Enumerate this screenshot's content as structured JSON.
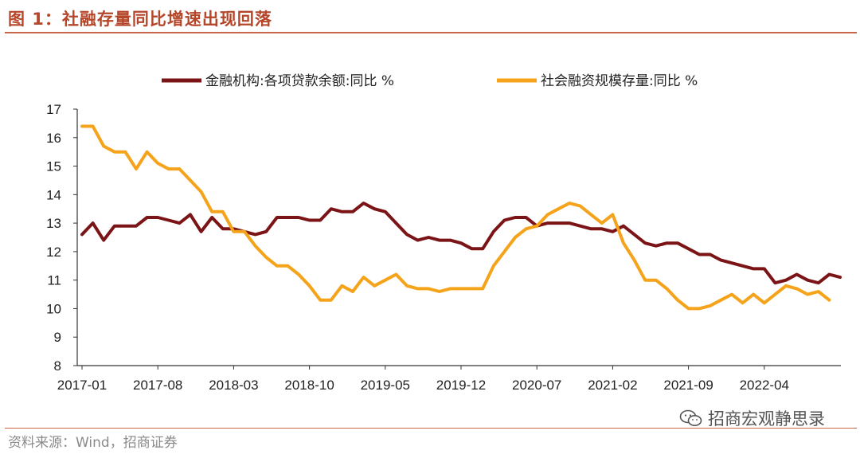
{
  "header": {
    "title": "图 1：社融存量同比增速出现回落"
  },
  "footer": {
    "source": "资料来源：Wind，招商证券",
    "watermark": "招商宏观静思录"
  },
  "colors": {
    "accent": "#b5462a",
    "series1": "#7b1416",
    "series2": "#f5a31a"
  },
  "chart_data": {
    "type": "line",
    "title": "",
    "xlabel": "",
    "ylabel": "",
    "ylim": [
      8,
      17
    ],
    "yticks": [
      8,
      9,
      10,
      11,
      12,
      13,
      14,
      15,
      16,
      17
    ],
    "x_tick_labels": [
      "2017-01",
      "2017-08",
      "2018-03",
      "2018-10",
      "2019-05",
      "2019-12",
      "2020-07",
      "2021-02",
      "2021-09",
      "2022-04"
    ],
    "x_start": "2017-01",
    "legend_position": "top",
    "grid": false,
    "series": [
      {
        "name": "金融机构:各项贷款余额:同比 %",
        "color": "#7b1416",
        "values": [
          12.6,
          13.0,
          12.4,
          12.9,
          12.9,
          12.9,
          13.2,
          13.2,
          13.1,
          13.0,
          13.3,
          12.7,
          13.2,
          12.8,
          12.8,
          12.7,
          12.6,
          12.7,
          13.2,
          13.2,
          13.2,
          13.1,
          13.1,
          13.5,
          13.4,
          13.4,
          13.7,
          13.5,
          13.4,
          13.0,
          12.6,
          12.4,
          12.5,
          12.4,
          12.4,
          12.3,
          12.1,
          12.1,
          12.7,
          13.1,
          13.2,
          13.2,
          12.9,
          13.0,
          13.0,
          13.0,
          12.9,
          12.8,
          12.8,
          12.7,
          12.9,
          12.6,
          12.3,
          12.2,
          12.3,
          12.3,
          12.1,
          11.9,
          11.9,
          11.7,
          11.6,
          11.5,
          11.4,
          11.4,
          10.9,
          11.0,
          11.2,
          11.0,
          10.9,
          11.2,
          11.1
        ]
      },
      {
        "name": "社会融资规模存量:同比 %",
        "color": "#f5a31a",
        "values": [
          16.4,
          16.4,
          15.7,
          15.5,
          15.5,
          14.9,
          15.5,
          15.1,
          14.9,
          14.9,
          14.5,
          14.1,
          13.4,
          13.4,
          12.7,
          12.7,
          12.2,
          11.8,
          11.5,
          11.5,
          11.2,
          10.8,
          10.3,
          10.3,
          10.8,
          10.6,
          11.1,
          10.8,
          11.0,
          11.2,
          10.8,
          10.7,
          10.7,
          10.6,
          10.7,
          10.7,
          10.7,
          10.7,
          11.5,
          12.0,
          12.5,
          12.8,
          12.9,
          13.3,
          13.5,
          13.7,
          13.6,
          13.3,
          13.0,
          13.3,
          12.3,
          11.7,
          11.0,
          11.0,
          10.7,
          10.3,
          10.0,
          10.0,
          10.1,
          10.3,
          10.5,
          10.2,
          10.5,
          10.2,
          10.5,
          10.8,
          10.7,
          10.5,
          10.6,
          10.3
        ]
      }
    ]
  }
}
